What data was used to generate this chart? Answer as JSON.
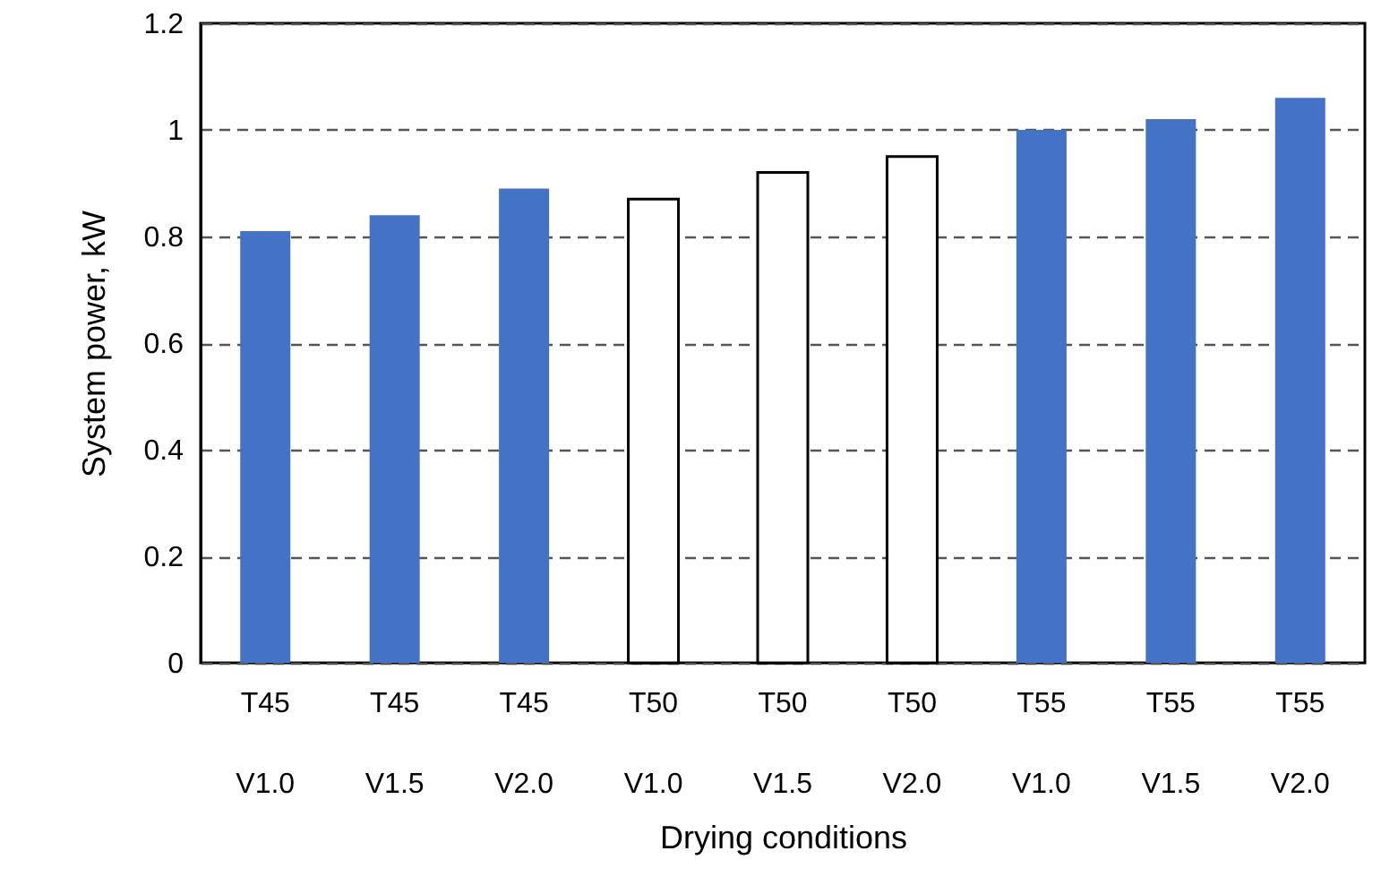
{
  "chart_data": {
    "type": "bar",
    "xlabel": "Drying conditions",
    "ylabel": "System power, kW",
    "categories": [
      "T45\nV1.0",
      "T45\nV1.5",
      "T45\nV2.0",
      "T50\nV1.0",
      "T50\nV1.5",
      "T50\nV2.0",
      "T55\nV1.0",
      "T55\nV1.5",
      "T55\nV2.0"
    ],
    "values": [
      0.81,
      0.84,
      0.89,
      0.87,
      0.92,
      0.95,
      1.0,
      1.02,
      1.06
    ],
    "colors": [
      "#4472c4",
      "#4472c4",
      "#4472c4",
      "#ffffff",
      "#ffffff",
      "#ffffff",
      "#4472c4",
      "#4472c4",
      "#4472c4"
    ],
    "ylim": [
      0,
      1.2
    ],
    "yticks": [
      0,
      0.2,
      0.4,
      0.6,
      0.8,
      1,
      1.2
    ],
    "grid": "y"
  }
}
